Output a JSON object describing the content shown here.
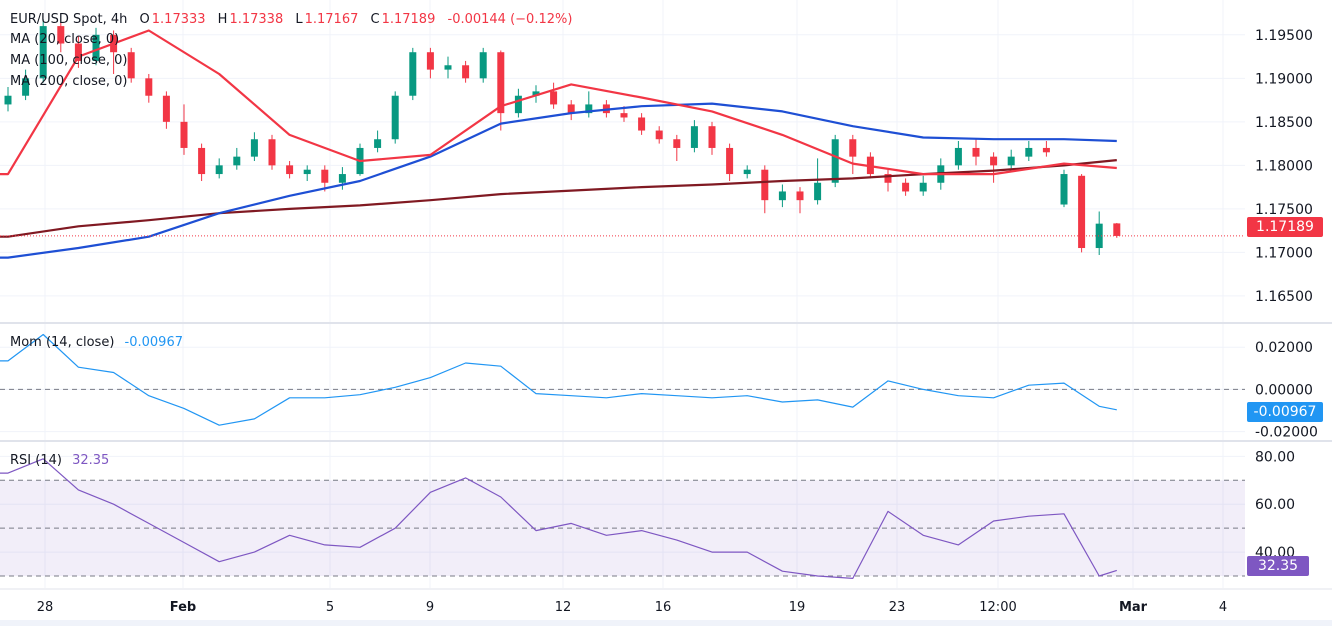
{
  "header": {
    "symbol": "EUR/USD Spot, 4h",
    "open_label": "O",
    "open": "1.17333",
    "high_label": "H",
    "high": "1.17338",
    "low_label": "L",
    "low": "1.17167",
    "close_label": "C",
    "close": "1.17189",
    "change": "-0.00144 (−0.12%)"
  },
  "indicators": {
    "ma20": "MA (20, close, 0)",
    "ma100": "MA (100, close, 0)",
    "ma200": "MA (200, close, 0)",
    "mom_label": "Mom (14, close)",
    "mom_value": "-0.00967",
    "rsi_label": "RSI (14)",
    "rsi_value": "32.35"
  },
  "colors": {
    "up": "#089981",
    "down": "#f23645",
    "ma20": "#f23645",
    "ma100": "#1e4fd4",
    "ma200": "#801922",
    "mom": "#2196f3",
    "rsi": "#7e57c2",
    "grid": "#f0f3fa"
  },
  "chart_data": [
    {
      "type": "candlestick",
      "title": "EUR/USD Spot, 4h",
      "ylim": [
        1.162,
        1.199
      ],
      "yticks": [
        "1.16500",
        "1.17000",
        "1.17500",
        "1.18000",
        "1.18500",
        "1.19000",
        "1.19500"
      ],
      "xticks": [
        "28",
        "Feb",
        "5",
        "9",
        "12",
        "16",
        "19",
        "23",
        "12:00",
        "Mar",
        "4"
      ],
      "last_price": "1.17189",
      "candles": [
        [
          1.187,
          1.189,
          1.1862,
          1.188
        ],
        [
          1.188,
          1.191,
          1.1875,
          1.19
        ],
        [
          1.19,
          1.1968,
          1.1895,
          1.196
        ],
        [
          1.196,
          1.1965,
          1.193,
          1.194
        ],
        [
          1.194,
          1.1948,
          1.1912,
          1.192
        ],
        [
          1.192,
          1.1958,
          1.1915,
          1.195
        ],
        [
          1.195,
          1.1955,
          1.1905,
          1.193
        ],
        [
          1.193,
          1.1935,
          1.1895,
          1.19
        ],
        [
          1.19,
          1.1905,
          1.1872,
          1.188
        ],
        [
          1.188,
          1.1885,
          1.1842,
          1.185
        ],
        [
          1.185,
          1.187,
          1.1812,
          1.182
        ],
        [
          1.182,
          1.1825,
          1.1782,
          1.179
        ],
        [
          1.179,
          1.1808,
          1.1785,
          1.18
        ],
        [
          1.18,
          1.182,
          1.1795,
          1.181
        ],
        [
          1.181,
          1.1838,
          1.1805,
          1.183
        ],
        [
          1.183,
          1.1835,
          1.1795,
          1.18
        ],
        [
          1.18,
          1.1805,
          1.1785,
          1.179
        ],
        [
          1.179,
          1.18,
          1.1782,
          1.1795
        ],
        [
          1.1795,
          1.18,
          1.177,
          1.178
        ],
        [
          1.178,
          1.1798,
          1.1772,
          1.179
        ],
        [
          1.179,
          1.1825,
          1.1788,
          1.182
        ],
        [
          1.182,
          1.184,
          1.1815,
          1.183
        ],
        [
          1.183,
          1.1885,
          1.1825,
          1.188
        ],
        [
          1.188,
          1.1935,
          1.1875,
          1.193
        ],
        [
          1.193,
          1.1935,
          1.19,
          1.191
        ],
        [
          1.191,
          1.1925,
          1.19,
          1.1915
        ],
        [
          1.1915,
          1.192,
          1.1895,
          1.19
        ],
        [
          1.19,
          1.1935,
          1.1895,
          1.193
        ],
        [
          1.193,
          1.1932,
          1.184,
          1.186
        ],
        [
          1.186,
          1.1888,
          1.1855,
          1.188
        ],
        [
          1.188,
          1.1892,
          1.1872,
          1.1885
        ],
        [
          1.1885,
          1.1895,
          1.1865,
          1.187
        ],
        [
          1.187,
          1.1875,
          1.1852,
          1.186
        ],
        [
          1.186,
          1.1885,
          1.1855,
          1.187
        ],
        [
          1.187,
          1.1875,
          1.1855,
          1.186
        ],
        [
          1.186,
          1.1868,
          1.185,
          1.1855
        ],
        [
          1.1855,
          1.186,
          1.1835,
          1.184
        ],
        [
          1.184,
          1.1845,
          1.1825,
          1.183
        ],
        [
          1.183,
          1.1835,
          1.1805,
          1.182
        ],
        [
          1.182,
          1.1852,
          1.1815,
          1.1845
        ],
        [
          1.1845,
          1.185,
          1.1812,
          1.182
        ],
        [
          1.182,
          1.1825,
          1.1782,
          1.179
        ],
        [
          1.179,
          1.18,
          1.1785,
          1.1795
        ],
        [
          1.1795,
          1.18,
          1.1745,
          1.176
        ],
        [
          1.176,
          1.1778,
          1.1752,
          1.177
        ],
        [
          1.177,
          1.1775,
          1.1745,
          1.176
        ],
        [
          1.176,
          1.1808,
          1.1755,
          1.178
        ],
        [
          1.178,
          1.1835,
          1.1775,
          1.183
        ],
        [
          1.183,
          1.1835,
          1.179,
          1.181
        ],
        [
          1.181,
          1.1815,
          1.1785,
          1.179
        ],
        [
          1.179,
          1.1795,
          1.177,
          1.178
        ],
        [
          1.178,
          1.1785,
          1.1765,
          1.177
        ],
        [
          1.177,
          1.1788,
          1.1765,
          1.178
        ],
        [
          1.178,
          1.1808,
          1.1772,
          1.18
        ],
        [
          1.18,
          1.1828,
          1.1795,
          1.182
        ],
        [
          1.182,
          1.183,
          1.18,
          1.181
        ],
        [
          1.181,
          1.1815,
          1.178,
          1.18
        ],
        [
          1.18,
          1.1818,
          1.1795,
          1.181
        ],
        [
          1.181,
          1.1828,
          1.1805,
          1.182
        ],
        [
          1.182,
          1.1828,
          1.181,
          1.1815
        ],
        [
          1.1755,
          1.1795,
          1.1752,
          1.179
        ],
        [
          1.1788,
          1.179,
          1.17,
          1.1705
        ],
        [
          1.1705,
          1.1747,
          1.1697,
          1.1733
        ],
        [
          1.17333,
          1.17338,
          1.17167,
          1.17189
        ]
      ],
      "ma_sample_candles": [
        0,
        4,
        8,
        12,
        16,
        20,
        24,
        28,
        32,
        36,
        40,
        44,
        48,
        52,
        56,
        60,
        63
      ],
      "ma20": [
        1.179,
        1.1925,
        1.1955,
        1.1905,
        1.1835,
        1.1805,
        1.1812,
        1.1868,
        1.1893,
        1.1878,
        1.1862,
        1.1835,
        1.1802,
        1.179,
        1.179,
        1.1802,
        1.1797
      ],
      "ma100": [
        1.1694,
        1.1705,
        1.1718,
        1.1745,
        1.1765,
        1.1782,
        1.181,
        1.1848,
        1.186,
        1.1868,
        1.1871,
        1.1862,
        1.1845,
        1.1832,
        1.183,
        1.183,
        1.1828
      ],
      "ma200": [
        1.1718,
        1.173,
        1.1737,
        1.1745,
        1.175,
        1.1754,
        1.176,
        1.1767,
        1.1771,
        1.1775,
        1.1778,
        1.1782,
        1.1785,
        1.179,
        1.1794,
        1.18,
        1.1806
      ]
    },
    {
      "type": "line",
      "title": "Mom (14, close)",
      "ylim": [
        -0.024,
        0.031
      ],
      "yticks": [
        "0.02000",
        "0.00000",
        "-0.02000"
      ],
      "reference_line": 0,
      "sample_candles": [
        0,
        2,
        4,
        6,
        8,
        10,
        12,
        14,
        16,
        18,
        20,
        22,
        24,
        26,
        28,
        30,
        32,
        34,
        36,
        38,
        40,
        42,
        44,
        46,
        48,
        50,
        52,
        54,
        56,
        58,
        60,
        62,
        63
      ],
      "values": [
        0.0135,
        0.026,
        0.0105,
        0.008,
        -0.003,
        -0.009,
        -0.017,
        -0.014,
        -0.004,
        -0.004,
        -0.0025,
        0.001,
        0.0056,
        0.0125,
        0.011,
        -0.002,
        -0.003,
        -0.004,
        -0.002,
        -0.003,
        -0.004,
        -0.003,
        -0.006,
        -0.005,
        -0.0084,
        0.004,
        0.0,
        -0.003,
        -0.004,
        0.002,
        0.003,
        -0.008,
        -0.00967
      ]
    },
    {
      "type": "line",
      "title": "RSI (14)",
      "ylim": [
        25,
        86
      ],
      "yticks": [
        "80.00",
        "60.00",
        "40.00"
      ],
      "band": [
        30,
        70
      ],
      "midline": 50,
      "sample_candles": [
        0,
        2,
        4,
        6,
        8,
        10,
        12,
        14,
        16,
        18,
        20,
        22,
        24,
        26,
        28,
        30,
        32,
        34,
        36,
        38,
        40,
        42,
        44,
        46,
        48,
        50,
        52,
        54,
        56,
        58,
        60,
        62,
        63
      ],
      "values": [
        73,
        79,
        66,
        60,
        52,
        44,
        36,
        40,
        47,
        43,
        42,
        50,
        65,
        71,
        63,
        49,
        52,
        47,
        49,
        45,
        40,
        40,
        32,
        30,
        29,
        57,
        47,
        43,
        53,
        55,
        56,
        30,
        32.35
      ]
    }
  ]
}
